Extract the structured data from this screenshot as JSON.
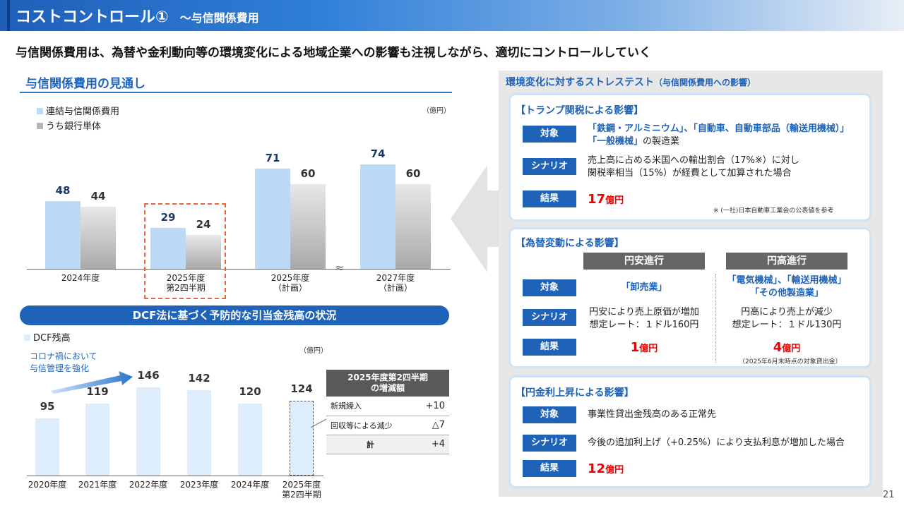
{
  "header": {
    "title": "コストコントロール①",
    "subtitle": "～与信関係費用"
  },
  "lead": "与信関係費用は、為替や金利動向等の環境変化による地域企業への影響も注視しながら、適切にコントロールしていく",
  "outlook": {
    "title": "与信関係費用の見通し",
    "unit": "（億円）",
    "legend": [
      "連結与信関係費用",
      "うち銀行単体"
    ],
    "break_mark": "≈"
  },
  "chart_data": [
    {
      "type": "bar",
      "title": "与信関係費用の見通し",
      "categories": [
        [
          "2024年度",
          ""
        ],
        [
          "2025年度",
          "第2四半期"
        ],
        [
          "2025年度",
          "（計画）"
        ],
        [
          "2027年度",
          "（計画）"
        ]
      ],
      "series": [
        {
          "name": "連結与信関係費用",
          "values": [
            48,
            29,
            71,
            74
          ],
          "color": "#bcd9f6"
        },
        {
          "name": "うち銀行単体",
          "values": [
            44,
            24,
            60,
            60
          ],
          "color": "#b5b5b5"
        }
      ],
      "ylim": [
        0,
        80
      ],
      "highlight_category": 1
    },
    {
      "type": "bar",
      "title": "DCF法に基づく予防的な引当金残高の状況",
      "legend": "DCF残高",
      "unit": "（億円）",
      "categories": [
        [
          "2020年度",
          ""
        ],
        [
          "2021年度",
          ""
        ],
        [
          "2022年度",
          ""
        ],
        [
          "2023年度",
          ""
        ],
        [
          "2024年度",
          ""
        ],
        [
          "2025年度",
          "第2四半期"
        ]
      ],
      "values": [
        95,
        119,
        146,
        142,
        120,
        124
      ],
      "ylim": [
        0,
        150
      ],
      "annotation": [
        "コロナ禍において",
        "与信管理を強化"
      ]
    }
  ],
  "dcf": {
    "title": "DCF法に基づく予防的な引当金残高の状況",
    "legend": "DCF残高",
    "unit": "（億円）",
    "annotation": [
      "コロナ禍において",
      "与信管理を強化"
    ]
  },
  "increase_table": {
    "title": [
      "2025年度第2四半期",
      "の増減額"
    ],
    "rows": [
      {
        "label": "新規繰入",
        "value": "+10"
      },
      {
        "label": "回収等による減少",
        "value": "△7"
      },
      {
        "label": "計",
        "value": "+4"
      }
    ]
  },
  "stress": {
    "title": "環境変化に対するストレステスト",
    "title_sub": "（与信関係費用への影響）",
    "tags": {
      "target": "対象",
      "scenario": "シナリオ",
      "result": "結果"
    },
    "tariff": {
      "heading": "【トランプ関税による影響】",
      "target": [
        "「鉄鋼・アルミニウム」、「自動車、自動車部品（輸送用機械）」",
        "「一般機械」"
      ],
      "target_suffix": "の製造業",
      "scenario": [
        "売上高に占める米国への輸出割合（17%※）に対し",
        "関税率相当（15%）が経費として加算された場合"
      ],
      "result_num": "17",
      "result_unit": "億円",
      "note": "※ (一社)日本自動車工業会の公表値を参考"
    },
    "fx": {
      "heading": "【為替変動による影響】",
      "weak_yen": {
        "label": "円安進行",
        "target": "「卸売業」",
        "scenario": [
          "円安により売上原価が増加",
          "想定レート：１ドル160円"
        ],
        "result_num": "1",
        "result_unit": "億円"
      },
      "strong_yen": {
        "label": "円高進行",
        "target": [
          "「電気機械」、「輸送用機械」",
          "「その他製造業」"
        ],
        "scenario": [
          "円高により売上が減少",
          "想定レート：１ドル130円"
        ],
        "result_num": "4",
        "result_unit": "億円",
        "note": "（2025年6月末時点の対象貸出金）"
      }
    },
    "rate": {
      "heading": "【円金利上昇による影響】",
      "target": "事業性貸出金残高のある正常先",
      "scenario": "今後の追加利上げ（+0.25%）により支払利息が増加した場合",
      "result_num": "12",
      "result_unit": "億円"
    }
  },
  "page_number": "21"
}
